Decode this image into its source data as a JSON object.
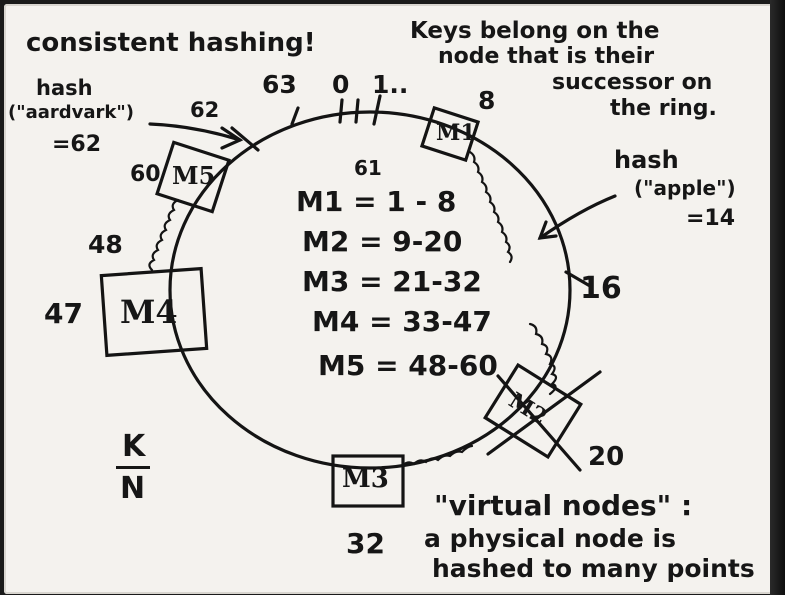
{
  "title": "consistent hashing!",
  "rule_note": [
    "Keys belong on the",
    "node that is their",
    "successor on",
    "the ring."
  ],
  "ring_ticks": {
    "t63": "63",
    "t0": "0",
    "t1": "1..",
    "t8": "8",
    "t62": "62",
    "t60": "60",
    "t48": "48",
    "t47": "47",
    "t16": "16",
    "t20": "20",
    "t32": "32",
    "t61": "61"
  },
  "aardvark": [
    "hash",
    "(\"aardvark\")",
    "=62"
  ],
  "apple": [
    "hash",
    "(\"apple\")",
    "=14"
  ],
  "nodes": {
    "m1": "M1",
    "m2": "M2",
    "m3": "M3",
    "m4": "M4",
    "m5": "M5"
  },
  "ranges": [
    "M1 = 1 - 8",
    "M2 = 9-20",
    "M3 = 21-32",
    "M4 = 33-47",
    "M5 = 48-60"
  ],
  "ratio": {
    "num": "K",
    "den": "N"
  },
  "virtual_nodes": [
    "\"virtual nodes\" :",
    "a physical node is",
    "hashed to many points"
  ]
}
